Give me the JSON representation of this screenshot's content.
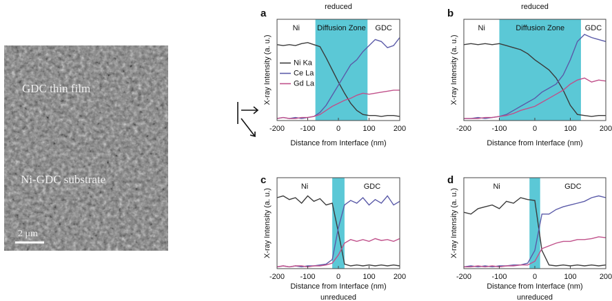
{
  "image": {
    "labels": [
      "GDC thin film",
      "Ni-GDC substrate",
      "2 μm"
    ]
  },
  "chart_data": [
    {
      "type": "line",
      "panel": "a",
      "title": "reduced",
      "xlabel": "Distance from Interface (nm)",
      "ylabel": "X-ray Intensity (a. u.)",
      "x": [
        -200,
        -180,
        -160,
        -140,
        -120,
        -100,
        -80,
        -60,
        -40,
        -20,
        0,
        20,
        40,
        60,
        80,
        100,
        120,
        140,
        160,
        180,
        200
      ],
      "xlim": [
        -200,
        200
      ],
      "xticks": [
        -200,
        -100,
        0,
        100,
        200
      ],
      "ylim": [
        0,
        1
      ],
      "zone": [
        -75,
        95
      ],
      "zone_color": "#5bc8d6",
      "annotations": [
        "Ni",
        "Diffusion Zone",
        "GDC"
      ],
      "legend": "center-left",
      "series": [
        {
          "name": "Ni Ka",
          "color": "#3a3a3a",
          "values": [
            0.75,
            0.74,
            0.75,
            0.74,
            0.76,
            0.77,
            0.75,
            0.73,
            0.62,
            0.5,
            0.38,
            0.27,
            0.17,
            0.1,
            0.06,
            0.05,
            0.05,
            0.04,
            0.05,
            0.05,
            0.04
          ]
        },
        {
          "name": "Ce La",
          "color": "#5a5aa8",
          "values": [
            0.02,
            0.03,
            0.02,
            0.03,
            0.02,
            0.03,
            0.04,
            0.08,
            0.15,
            0.25,
            0.35,
            0.45,
            0.55,
            0.6,
            0.68,
            0.74,
            0.8,
            0.78,
            0.72,
            0.74,
            0.82
          ]
        },
        {
          "name": "Gd La",
          "color": "#c0508a",
          "values": [
            0.02,
            0.03,
            0.02,
            0.02,
            0.03,
            0.03,
            0.04,
            0.06,
            0.1,
            0.14,
            0.17,
            0.2,
            0.22,
            0.25,
            0.27,
            0.26,
            0.27,
            0.28,
            0.29,
            0.3,
            0.3
          ]
        }
      ]
    },
    {
      "type": "line",
      "panel": "b",
      "title": "reduced",
      "xlabel": "Distance from Interface (nm)",
      "ylabel": "X-ray Intensity (a. u.)",
      "x": [
        -200,
        -180,
        -160,
        -140,
        -120,
        -100,
        -80,
        -60,
        -40,
        -20,
        0,
        20,
        40,
        60,
        80,
        100,
        120,
        140,
        160,
        180,
        200
      ],
      "xlim": [
        -200,
        200
      ],
      "xticks": [
        -200,
        -100,
        0,
        100,
        200
      ],
      "ylim": [
        0,
        1
      ],
      "zone": [
        -100,
        130
      ],
      "zone_color": "#5bc8d6",
      "annotations": [
        "Ni",
        "Diffusion Zone",
        "GDC"
      ],
      "series": [
        {
          "color": "#3a3a3a",
          "values": [
            0.75,
            0.76,
            0.75,
            0.76,
            0.75,
            0.76,
            0.74,
            0.72,
            0.7,
            0.66,
            0.6,
            0.55,
            0.5,
            0.42,
            0.3,
            0.15,
            0.06,
            0.05,
            0.04,
            0.05,
            0.05
          ]
        },
        {
          "color": "#5a5aa8",
          "values": [
            0.02,
            0.02,
            0.03,
            0.02,
            0.03,
            0.04,
            0.06,
            0.1,
            0.14,
            0.18,
            0.22,
            0.28,
            0.32,
            0.36,
            0.45,
            0.6,
            0.78,
            0.85,
            0.82,
            0.8,
            0.78
          ]
        },
        {
          "color": "#c0508a",
          "values": [
            0.02,
            0.02,
            0.02,
            0.03,
            0.03,
            0.04,
            0.05,
            0.07,
            0.1,
            0.12,
            0.14,
            0.18,
            0.22,
            0.26,
            0.3,
            0.36,
            0.4,
            0.42,
            0.38,
            0.4,
            0.39
          ]
        }
      ]
    },
    {
      "type": "line",
      "panel": "c",
      "title": "unreduced",
      "xlabel": "Distance from Interface (nm)",
      "ylabel": "X-ray Intensity (a. u.)",
      "x": [
        -200,
        -180,
        -160,
        -140,
        -120,
        -100,
        -80,
        -60,
        -40,
        -20,
        0,
        20,
        40,
        60,
        80,
        100,
        120,
        140,
        160,
        180,
        200
      ],
      "xlim": [
        -200,
        200
      ],
      "xticks": [
        -200,
        -100,
        0,
        100,
        200
      ],
      "ylim": [
        0,
        1
      ],
      "zone": [
        -20,
        20
      ],
      "zone_color": "#5bc8d6",
      "annotations": [
        "Ni",
        "GDC"
      ],
      "series": [
        {
          "color": "#3a3a3a",
          "values": [
            0.78,
            0.8,
            0.76,
            0.78,
            0.72,
            0.8,
            0.74,
            0.77,
            0.7,
            0.72,
            0.4,
            0.05,
            0.03,
            0.04,
            0.03,
            0.04,
            0.03,
            0.04,
            0.03,
            0.04,
            0.03
          ]
        },
        {
          "color": "#5a5aa8",
          "values": [
            0.02,
            0.03,
            0.02,
            0.03,
            0.02,
            0.03,
            0.03,
            0.04,
            0.05,
            0.1,
            0.45,
            0.7,
            0.75,
            0.72,
            0.78,
            0.7,
            0.76,
            0.72,
            0.8,
            0.7,
            0.74
          ]
        },
        {
          "color": "#c0508a",
          "values": [
            0.02,
            0.03,
            0.02,
            0.03,
            0.03,
            0.02,
            0.03,
            0.03,
            0.04,
            0.06,
            0.15,
            0.28,
            0.32,
            0.3,
            0.32,
            0.3,
            0.33,
            0.31,
            0.32,
            0.3,
            0.33
          ]
        }
      ]
    },
    {
      "type": "line",
      "panel": "d",
      "title": "unreduced",
      "xlabel": "Distance from Interface (nm)",
      "ylabel": "X-ray Intensity (a. u.)",
      "x": [
        -200,
        -180,
        -160,
        -140,
        -120,
        -100,
        -80,
        -60,
        -40,
        -20,
        0,
        20,
        40,
        60,
        80,
        100,
        120,
        140,
        160,
        180,
        200
      ],
      "xlim": [
        -200,
        200
      ],
      "xticks": [
        -200,
        -100,
        0,
        100,
        200
      ],
      "ylim": [
        0,
        1
      ],
      "zone": [
        -15,
        15
      ],
      "zone_color": "#5bc8d6",
      "annotations": [
        "Ni",
        "GDC"
      ],
      "series": [
        {
          "color": "#3a3a3a",
          "values": [
            0.62,
            0.6,
            0.66,
            0.68,
            0.7,
            0.66,
            0.74,
            0.72,
            0.78,
            0.76,
            0.75,
            0.2,
            0.04,
            0.03,
            0.04,
            0.03,
            0.04,
            0.03,
            0.04,
            0.03,
            0.04
          ]
        },
        {
          "color": "#5a5aa8",
          "values": [
            0.02,
            0.03,
            0.02,
            0.03,
            0.02,
            0.03,
            0.03,
            0.04,
            0.04,
            0.06,
            0.2,
            0.6,
            0.6,
            0.65,
            0.68,
            0.7,
            0.72,
            0.74,
            0.78,
            0.8,
            0.78
          ]
        },
        {
          "color": "#c0508a",
          "values": [
            0.02,
            0.02,
            0.03,
            0.02,
            0.03,
            0.02,
            0.03,
            0.03,
            0.04,
            0.04,
            0.08,
            0.22,
            0.25,
            0.28,
            0.3,
            0.3,
            0.32,
            0.32,
            0.33,
            0.35,
            0.34
          ]
        }
      ]
    }
  ]
}
